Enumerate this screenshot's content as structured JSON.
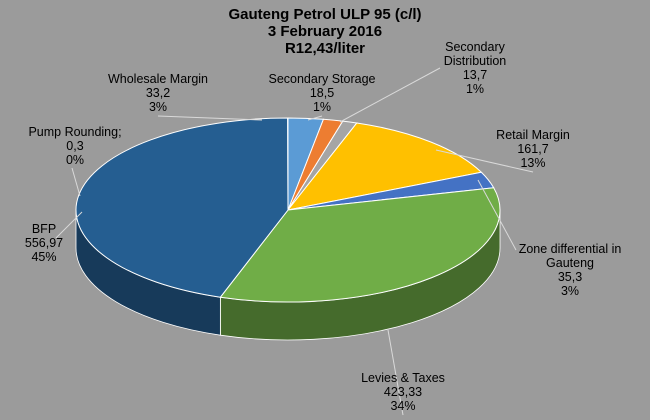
{
  "chart_data": {
    "type": "pie",
    "title": [
      "Gauteng Petrol ULP 95  (c/l)",
      "3 February 2016",
      "R12,43/liter"
    ],
    "start_category": "Wholesale Margin",
    "slices": [
      {
        "name": "Wholesale Margin",
        "name_lines": [
          "Wholesale Margin"
        ],
        "value_text": "33,2",
        "value": 33.2,
        "pct_text": "3%",
        "color": "#5b9bd5"
      },
      {
        "name": "Secondary Storage",
        "name_lines": [
          "Secondary Storage"
        ],
        "value_text": "18,5",
        "value": 18.5,
        "pct_text": "1%",
        "color": "#ed7d31"
      },
      {
        "name": "Secondary Distribution",
        "name_lines": [
          "Secondary",
          "Distribution"
        ],
        "value_text": "13,7",
        "value": 13.7,
        "pct_text": "1%",
        "color": "#a5a5a5"
      },
      {
        "name": "Retail Margin",
        "name_lines": [
          "Retail Margin"
        ],
        "value_text": "161,7",
        "value": 161.7,
        "pct_text": "13%",
        "color": "#ffc000"
      },
      {
        "name": "Zone differential in Gauteng",
        "name_lines": [
          "Zone differential in",
          "Gauteng"
        ],
        "value_text": "35,3",
        "value": 35.3,
        "pct_text": "3%",
        "color": "#4472c4"
      },
      {
        "name": "Levies & Taxes",
        "name_lines": [
          "Levies & Taxes"
        ],
        "value_text": "423,33",
        "value": 423.33,
        "pct_text": "34%",
        "color": "#70ad47"
      },
      {
        "name": "BFP",
        "name_lines": [
          "BFP"
        ],
        "value_text": "556,97",
        "value": 556.97,
        "pct_text": "45%",
        "color": "#255e91"
      },
      {
        "name": "Pump Rounding",
        "name_lines": [
          "Pump Rounding;"
        ],
        "value_text": "0,3",
        "value": 0.3,
        "pct_text": "0%",
        "color": "#9e480e"
      }
    ]
  }
}
